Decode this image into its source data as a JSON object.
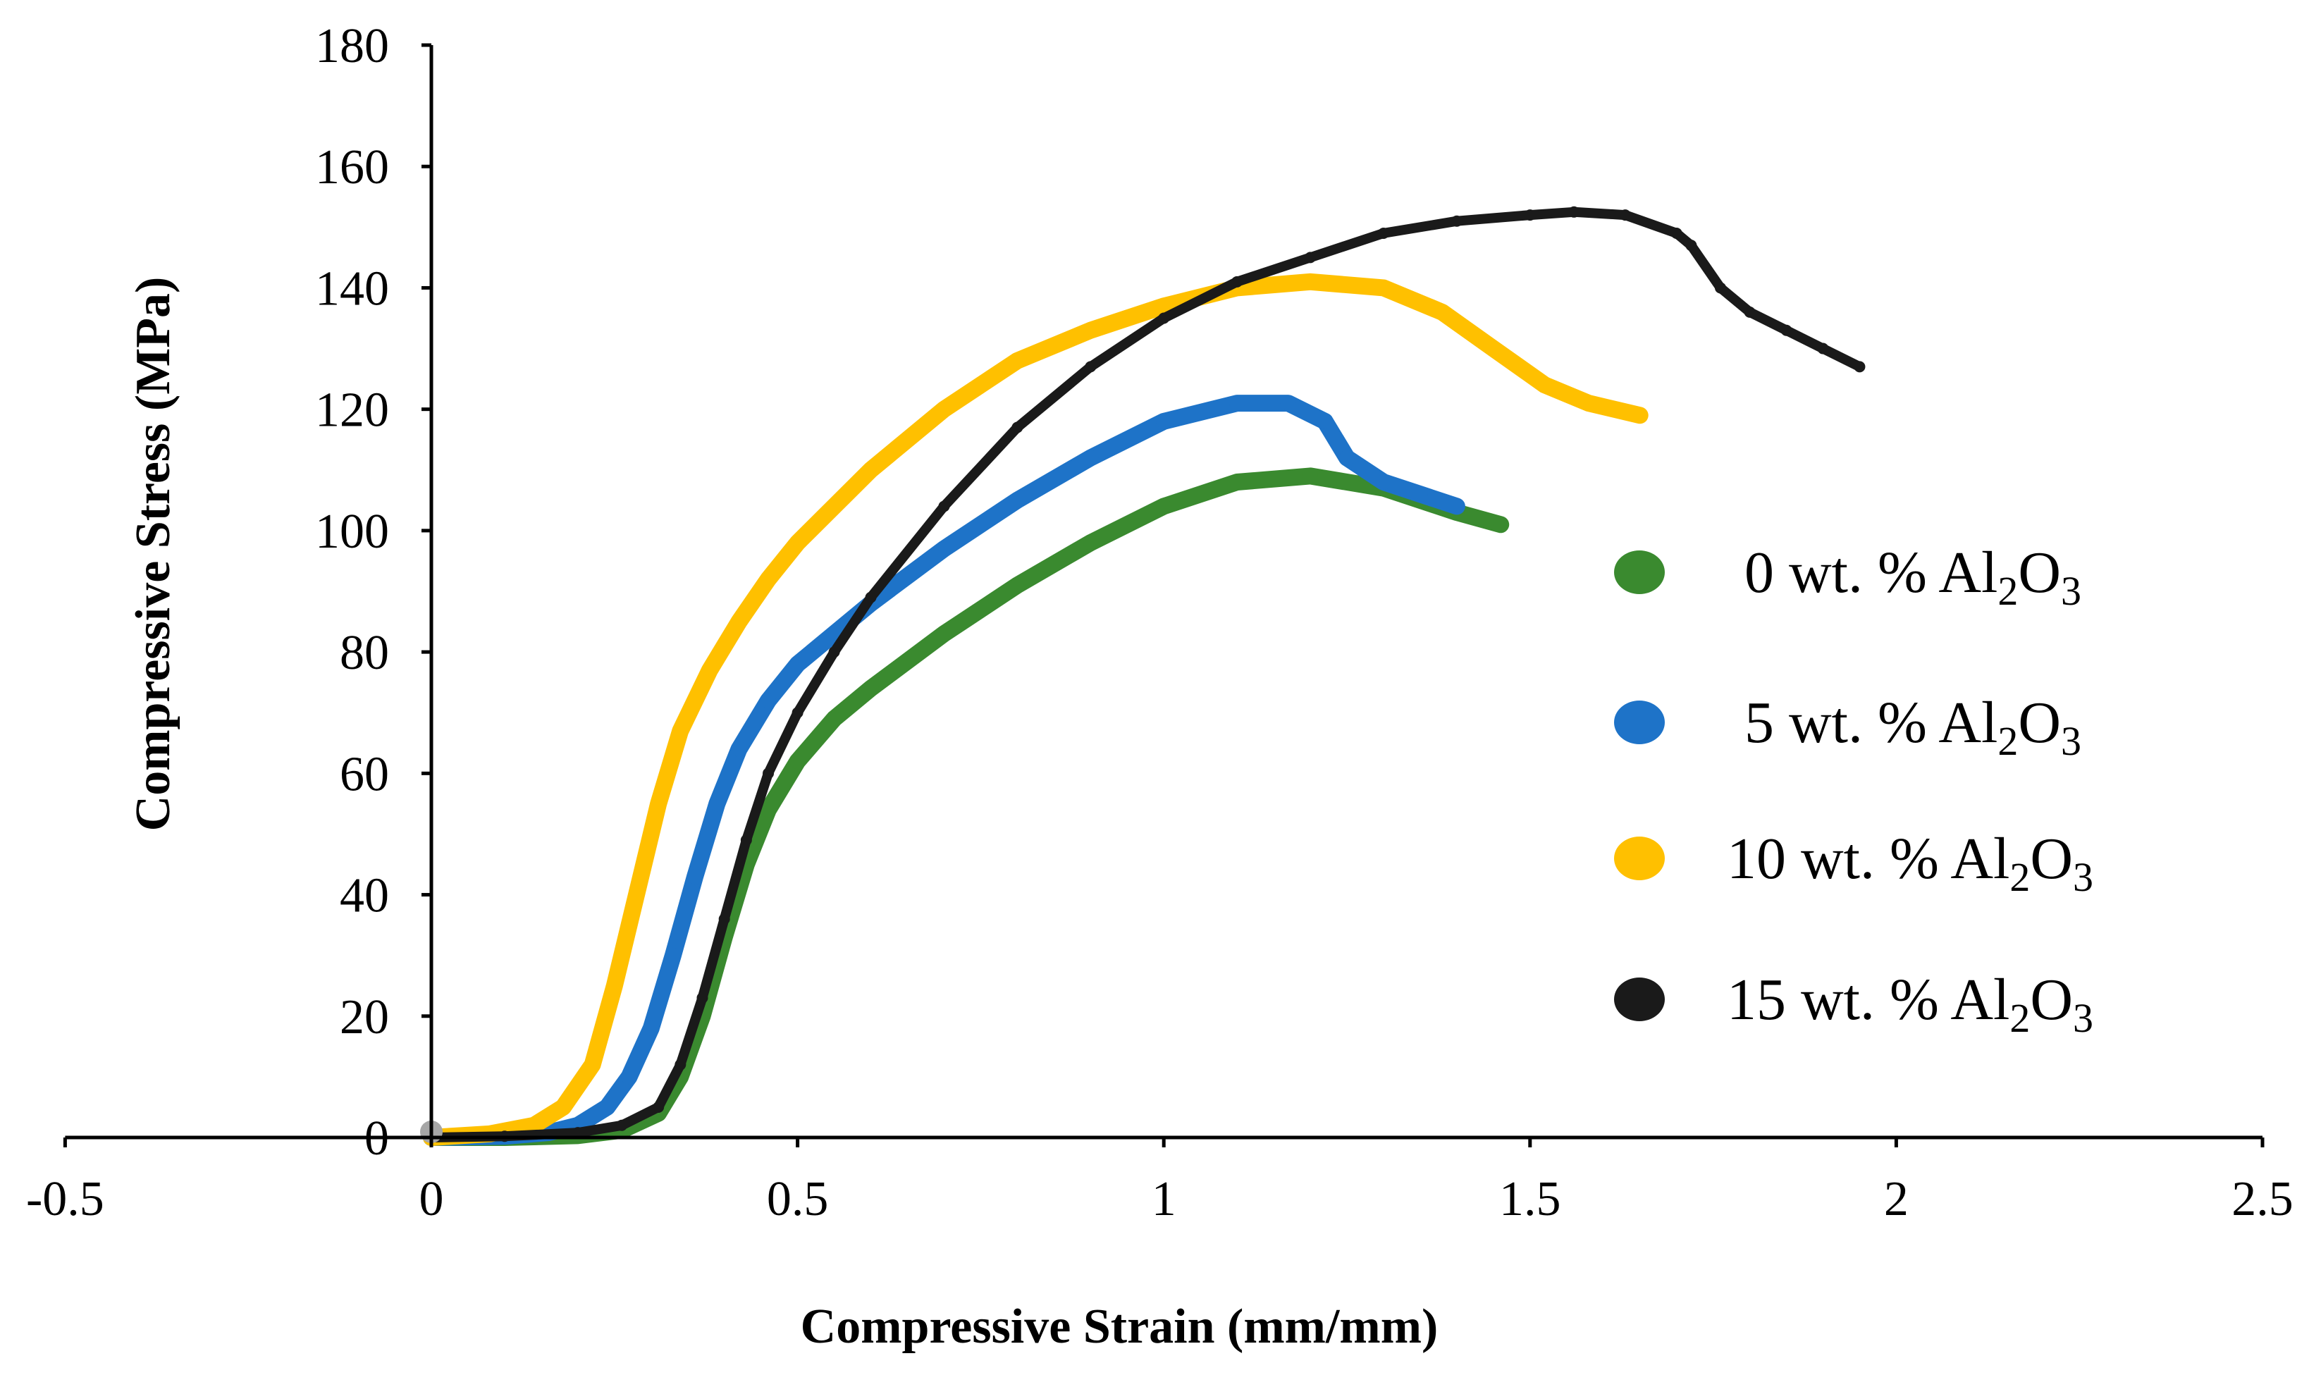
{
  "chart_data": {
    "type": "line",
    "title": "",
    "xlabel": "Compressive Strain (mm/mm)",
    "ylabel": "Compressive Stress (MPa)",
    "xlim": [
      -0.5,
      2.5
    ],
    "ylim": [
      0,
      180
    ],
    "x_ticks": [
      -0.5,
      0,
      0.5,
      1,
      1.5,
      2,
      2.5
    ],
    "x_tick_labels": [
      "-0.5",
      "0",
      "0.5",
      "1",
      "1.5",
      "2",
      "2.5"
    ],
    "y_ticks": [
      0,
      20,
      40,
      60,
      80,
      100,
      120,
      140,
      160,
      180
    ],
    "y_tick_labels": [
      "0",
      "20",
      "40",
      "60",
      "80",
      "100",
      "120",
      "140",
      "160",
      "180"
    ],
    "grid": false,
    "legend_position": "right",
    "series": [
      {
        "name": "0 wt. % Al2O3",
        "legend": {
          "prefix": "0 wt. % Al",
          "sub1": "2",
          "mid": "O",
          "sub2": "3"
        },
        "color": "#3a8a2f",
        "x": [
          0,
          0.1,
          0.2,
          0.26,
          0.31,
          0.34,
          0.37,
          0.4,
          0.43,
          0.46,
          0.5,
          0.55,
          0.6,
          0.7,
          0.8,
          0.9,
          1.0,
          1.1,
          1.2,
          1.3,
          1.4,
          1.46
        ],
        "y": [
          0,
          0,
          0.3,
          1.2,
          4,
          10,
          20,
          33,
          45,
          54,
          62,
          69,
          74,
          83,
          91,
          98,
          104,
          108,
          109,
          107,
          103,
          101
        ]
      },
      {
        "name": "5 wt. % Al2O3",
        "legend": {
          "prefix": "5 wt. % Al",
          "sub1": "2",
          "mid": "O",
          "sub2": "3"
        },
        "color": "#1e73c8",
        "x": [
          0,
          0.1,
          0.16,
          0.2,
          0.24,
          0.27,
          0.3,
          0.33,
          0.36,
          0.39,
          0.42,
          0.46,
          0.5,
          0.6,
          0.7,
          0.8,
          0.9,
          1.0,
          1.1,
          1.17,
          1.22,
          1.25,
          1.3,
          1.35,
          1.4
        ],
        "y": [
          0,
          0.2,
          0.8,
          2,
          5,
          10,
          18,
          30,
          43,
          55,
          64,
          72,
          78,
          88,
          97,
          105,
          112,
          118,
          121,
          121,
          118,
          112,
          108,
          106,
          104
        ]
      },
      {
        "name": "10 wt. % Al2O3",
        "legend": {
          "prefix": "10 wt. % Al",
          "sub1": "2",
          "mid": "O",
          "sub2": "3"
        },
        "color": "#ffc000",
        "x": [
          0,
          0.08,
          0.14,
          0.18,
          0.22,
          0.25,
          0.28,
          0.31,
          0.34,
          0.38,
          0.42,
          0.46,
          0.5,
          0.6,
          0.7,
          0.8,
          0.9,
          1.0,
          1.1,
          1.2,
          1.3,
          1.38,
          1.45,
          1.52,
          1.58,
          1.65
        ],
        "y": [
          0,
          0.6,
          2,
          5,
          12,
          25,
          40,
          55,
          67,
          77,
          85,
          92,
          98,
          110,
          120,
          128,
          133,
          137,
          140,
          141,
          140,
          136,
          130,
          124,
          121,
          119
        ]
      },
      {
        "name": "15 wt. % Al2O3",
        "legend": {
          "prefix": "15 wt. % Al",
          "sub1": "2",
          "mid": "O",
          "sub2": "3"
        },
        "color": "#1a1a1a",
        "x": [
          0,
          0.1,
          0.2,
          0.26,
          0.31,
          0.34,
          0.37,
          0.4,
          0.43,
          0.46,
          0.5,
          0.55,
          0.6,
          0.7,
          0.8,
          0.9,
          1.0,
          1.1,
          1.2,
          1.3,
          1.4,
          1.5,
          1.56,
          1.63,
          1.7,
          1.72,
          1.76,
          1.8,
          1.85,
          1.9,
          1.95
        ],
        "y": [
          0,
          0.2,
          0.8,
          2,
          5,
          12,
          23,
          36,
          49,
          60,
          70,
          80,
          89,
          104,
          117,
          127,
          135,
          141,
          145,
          149,
          151,
          152,
          152.5,
          152,
          149,
          147,
          140,
          136,
          133,
          130,
          127
        ]
      }
    ]
  }
}
